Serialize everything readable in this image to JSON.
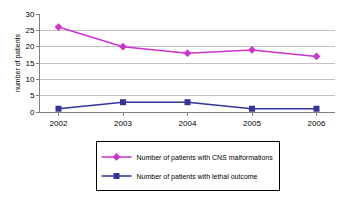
{
  "chart_data": {
    "type": "line",
    "categories": [
      "2002",
      "2003",
      "2004",
      "2005",
      "2006"
    ],
    "y_label": "number of patients",
    "series": [
      {
        "name": "Number of patients with CNS malformations",
        "color": "#cc33cc",
        "marker": "diamond",
        "values": [
          26,
          20,
          18,
          19,
          17
        ]
      },
      {
        "name": "Number of patients with lethal outcome",
        "color": "#333399",
        "marker": "square",
        "values": [
          1,
          3,
          3,
          1,
          1
        ]
      }
    ],
    "ylim": [
      0,
      30
    ],
    "yticks": [
      0,
      5,
      10,
      15,
      20,
      25,
      30
    ],
    "grid": true,
    "legend": "bottom"
  }
}
